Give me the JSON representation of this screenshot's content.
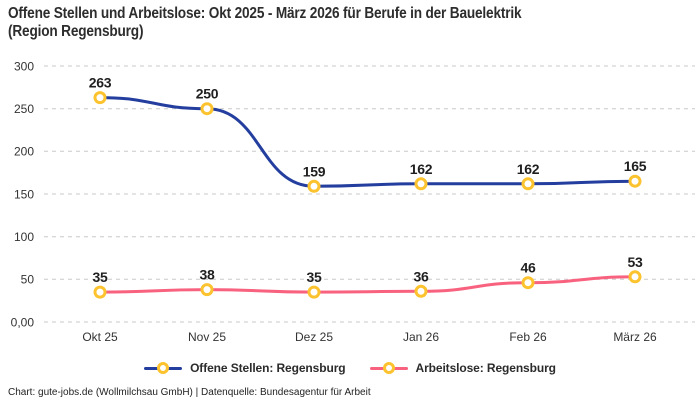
{
  "header": {
    "title_lines": [
      "Offene Stellen und Arbeitslose: Okt 2025 - März 2026 für Berufe in der Bauelektrik",
      "(Region Regensburg)"
    ]
  },
  "chart_data": {
    "type": "line",
    "title": "Offene Stellen und Arbeitslose: Okt 2025 - März 2026 für Berufe in der Bauelektrik (Region Regensburg)",
    "categories": [
      "Okt 25",
      "Nov 25",
      "Dez 25",
      "Jan 26",
      "Feb 26",
      "März 26"
    ],
    "series": [
      {
        "name": "Offene Stellen: Regensburg",
        "color": "#233e9e",
        "values": [
          263,
          250,
          159,
          162,
          162,
          165
        ]
      },
      {
        "name": "Arbeitslose: Regensburg",
        "color": "#f8627f",
        "values": [
          35,
          38,
          35,
          36,
          46,
          53
        ]
      }
    ],
    "ylim": [
      0,
      300
    ],
    "y_ticks": [
      {
        "label": "300",
        "value": 300
      },
      {
        "label": "250",
        "value": 250
      },
      {
        "label": "200",
        "value": 200
      },
      {
        "label": "150",
        "value": 150
      },
      {
        "label": "100",
        "value": 100
      },
      {
        "label": "50",
        "value": 50
      },
      {
        "label": "0,00",
        "value": 0
      }
    ],
    "grid": "horizontal-dashed",
    "legend_position": "bottom",
    "data_labels": true,
    "marker": {
      "fill": "#ffffff",
      "stroke": "#fcc32f"
    }
  },
  "footer": {
    "credit": "Chart: gute-jobs.de (Wollmilchsau GmbH) | Datenquelle: Bundesagentur für Arbeit"
  },
  "colors": {
    "background": "#ffffff",
    "grid": "#c9c9c9",
    "title_text": "#2d2d2d",
    "axis_text": "#333333",
    "marker_ring": "#fcc32f"
  }
}
